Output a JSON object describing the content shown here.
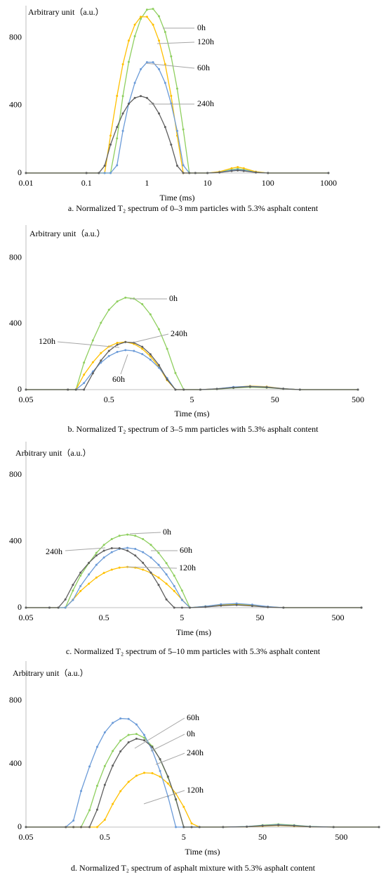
{
  "chart_data": [
    {
      "type": "line",
      "xscale": "log",
      "grid": false,
      "ylabel": "Arbitrary unit（a.u.）",
      "xlabel": "Time (ms)",
      "caption": "a. Normalized T₂ spectrum of 0–3 mm particles with 5.3% asphalt content",
      "xlim": [
        0.01,
        1000
      ],
      "xticks": [
        0.01,
        0.1,
        1,
        10,
        100,
        1000
      ],
      "ylim": [
        0,
        990
      ],
      "yticks": [
        0,
        400,
        800
      ],
      "x": [
        0.01,
        0.1,
        0.16,
        0.2,
        0.25,
        0.32,
        0.4,
        0.5,
        0.63,
        0.79,
        1,
        1.26,
        1.58,
        2,
        2.51,
        3.16,
        3.98,
        5.01,
        6.31,
        10,
        15.8,
        25.1,
        31.6,
        39.8,
        63.1,
        100,
        1000
      ],
      "series": [
        {
          "name": "0h",
          "color": "#8fcf5f",
          "values": [
            0,
            0,
            0,
            0,
            0,
            205,
            455,
            657,
            809,
            912,
            966,
            971,
            927,
            834,
            690,
            499,
            258,
            0,
            0,
            0,
            5,
            20,
            25,
            20,
            5,
            0,
            0
          ]
        },
        {
          "name": "120h",
          "color": "#ffc000",
          "values": [
            0,
            0,
            0,
            0,
            221,
            456,
            643,
            783,
            877,
            924,
            924,
            877,
            783,
            643,
            456,
            221,
            0,
            0,
            0,
            0,
            8,
            28,
            35,
            28,
            8,
            0,
            0
          ]
        },
        {
          "name": "60h",
          "color": "#6b9bd8",
          "values": [
            0,
            0,
            0,
            0,
            0,
            46,
            249,
            411,
            533,
            614,
            655,
            655,
            614,
            533,
            411,
            249,
            46,
            0,
            0,
            0,
            4,
            16,
            20,
            16,
            4,
            0,
            0
          ]
        },
        {
          "name": "240h",
          "color": "#5f5f5f",
          "values": [
            0,
            0,
            0,
            43,
            168,
            272,
            352,
            409,
            444,
            455,
            444,
            409,
            352,
            272,
            168,
            43,
            0,
            0,
            0,
            0,
            3,
            12,
            15,
            12,
            3,
            0,
            0
          ]
        }
      ]
    },
    {
      "type": "line",
      "xscale": "log",
      "grid": false,
      "ylabel": "Arbitrary unit（a.u.）",
      "xlabel": "Time (ms)",
      "caption": "b. Normalized T₂ spectrum of 3–5 mm particles with 5.3% asphalt content",
      "xlim": [
        0.05,
        500
      ],
      "xticks": [
        0.05,
        0.5,
        5,
        50,
        500
      ],
      "ylim": [
        0,
        1000
      ],
      "yticks": [
        0,
        400,
        800
      ],
      "x": [
        0.05,
        0.16,
        0.2,
        0.25,
        0.32,
        0.4,
        0.5,
        0.63,
        0.79,
        1,
        1.26,
        1.58,
        2,
        2.51,
        3.16,
        3.98,
        6.31,
        10,
        15.8,
        25.1,
        39.8,
        63.1,
        100,
        500
      ],
      "series": [
        {
          "name": "0h",
          "color": "#8fcf5f",
          "values": [
            0,
            0,
            0,
            164,
            299,
            406,
            485,
            536,
            559,
            553,
            519,
            457,
            367,
            248,
            101,
            0,
            0,
            3,
            10,
            15,
            12,
            5,
            0,
            0
          ]
        },
        {
          "name": "120h",
          "color": "#ffc000",
          "values": [
            0,
            0,
            0,
            91,
            166,
            222,
            262,
            284,
            290,
            278,
            248,
            202,
            138,
            57,
            0,
            0,
            0,
            5,
            15,
            22,
            18,
            6,
            0,
            0
          ]
        },
        {
          "name": "60h",
          "color": "#6b9bd8",
          "values": [
            0,
            0,
            0,
            40,
            110,
            164,
            204,
            229,
            240,
            235,
            216,
            182,
            133,
            70,
            0,
            0,
            0,
            5,
            16,
            20,
            16,
            6,
            0,
            0
          ]
        },
        {
          "name": "240h",
          "color": "#5f5f5f",
          "values": [
            0,
            0,
            0,
            0,
            99,
            177,
            235,
            273,
            289,
            285,
            260,
            215,
            149,
            62,
            0,
            0,
            0,
            4,
            12,
            18,
            14,
            5,
            0,
            0
          ]
        }
      ]
    },
    {
      "type": "line",
      "xscale": "log",
      "grid": false,
      "ylabel": "Arbitrary unit（a.u.）",
      "xlabel": "Time (ms)",
      "caption": "c. Normalized T₂ spectrum of 5–10 mm particles with 5.3% asphalt content",
      "xlim": [
        0.05,
        1000
      ],
      "xticks": [
        0.05,
        0.5,
        5,
        50,
        500
      ],
      "ylim": [
        0,
        1000
      ],
      "yticks": [
        0,
        400,
        800
      ],
      "x": [
        0.05,
        0.1,
        0.13,
        0.16,
        0.2,
        0.25,
        0.32,
        0.4,
        0.5,
        0.63,
        0.79,
        1,
        1.26,
        1.58,
        2,
        2.51,
        3.16,
        3.98,
        5.01,
        6.31,
        10,
        15.8,
        25.1,
        39.8,
        63.1,
        100,
        1000
      ],
      "series": [
        {
          "name": "0h",
          "color": "#8fcf5f",
          "values": [
            0,
            0,
            0,
            0,
            103,
            193,
            268,
            330,
            378,
            413,
            433,
            440,
            433,
            413,
            378,
            330,
            268,
            193,
            103,
            0,
            8,
            18,
            22,
            15,
            5,
            0,
            0
          ]
        },
        {
          "name": "120h",
          "color": "#ffc000",
          "values": [
            0,
            0,
            0,
            0,
            48,
            100,
            144,
            181,
            209,
            229,
            241,
            245,
            241,
            229,
            209,
            181,
            144,
            100,
            48,
            0,
            6,
            15,
            18,
            12,
            4,
            0,
            0
          ]
        },
        {
          "name": "60h",
          "color": "#6b9bd8",
          "values": [
            0,
            0,
            0,
            0,
            46,
            130,
            200,
            258,
            302,
            334,
            354,
            360,
            354,
            334,
            302,
            258,
            200,
            130,
            46,
            0,
            8,
            20,
            25,
            18,
            6,
            0,
            0
          ]
        },
        {
          "name": "240h",
          "color": "#5f5f5f",
          "values": [
            0,
            0,
            0,
            49,
            137,
            211,
            270,
            314,
            343,
            358,
            358,
            343,
            314,
            270,
            211,
            137,
            49,
            0,
            0,
            0,
            4,
            12,
            16,
            10,
            3,
            0,
            0
          ]
        }
      ]
    },
    {
      "type": "line",
      "xscale": "log",
      "grid": false,
      "ylabel": "Arbitrary unit（a.u.）",
      "xlabel": "Time (ms)",
      "caption": "d. Normalized T₂ spectrum of asphalt mixture with 5.3% asphalt content",
      "xlim": [
        0.05,
        1500
      ],
      "xticks": [
        0.05,
        0.5,
        5,
        50,
        500
      ],
      "ylim": [
        0,
        1050
      ],
      "yticks": [
        0,
        400,
        800
      ],
      "x": [
        0.05,
        0.16,
        0.2,
        0.25,
        0.32,
        0.4,
        0.5,
        0.63,
        0.79,
        1,
        1.26,
        1.58,
        2,
        2.51,
        3.16,
        3.98,
        5.01,
        6.31,
        7.94,
        15.8,
        31.6,
        50.1,
        79.4,
        126,
        200,
        398,
        1500
      ],
      "series": [
        {
          "name": "0h",
          "color": "#8fcf5f",
          "values": [
            0,
            0,
            0,
            0,
            107,
            261,
            386,
            481,
            547,
            583,
            589,
            565,
            511,
            428,
            315,
            173,
            0,
            0,
            0,
            0,
            3,
            12,
            18,
            12,
            4,
            0,
            0
          ]
        },
        {
          "name": "120h",
          "color": "#ffc000",
          "values": [
            0,
            0,
            0,
            0,
            0,
            0,
            46,
            146,
            227,
            286,
            325,
            343,
            341,
            319,
            276,
            212,
            128,
            23,
            0,
            0,
            2,
            6,
            10,
            6,
            2,
            0,
            0
          ]
        },
        {
          "name": "60h",
          "color": "#6b9bd8",
          "values": [
            0,
            0,
            41,
            228,
            383,
            507,
            599,
            659,
            687,
            684,
            649,
            583,
            485,
            355,
            194,
            0,
            0,
            0,
            0,
            0,
            3,
            10,
            15,
            10,
            3,
            0,
            0
          ]
        },
        {
          "name": "240h",
          "color": "#5f5f5f",
          "values": [
            0,
            0,
            0,
            0,
            0,
            110,
            267,
            389,
            479,
            536,
            559,
            549,
            506,
            430,
            320,
            176,
            0,
            0,
            0,
            0,
            2,
            8,
            12,
            8,
            2,
            0,
            0
          ]
        }
      ]
    }
  ]
}
